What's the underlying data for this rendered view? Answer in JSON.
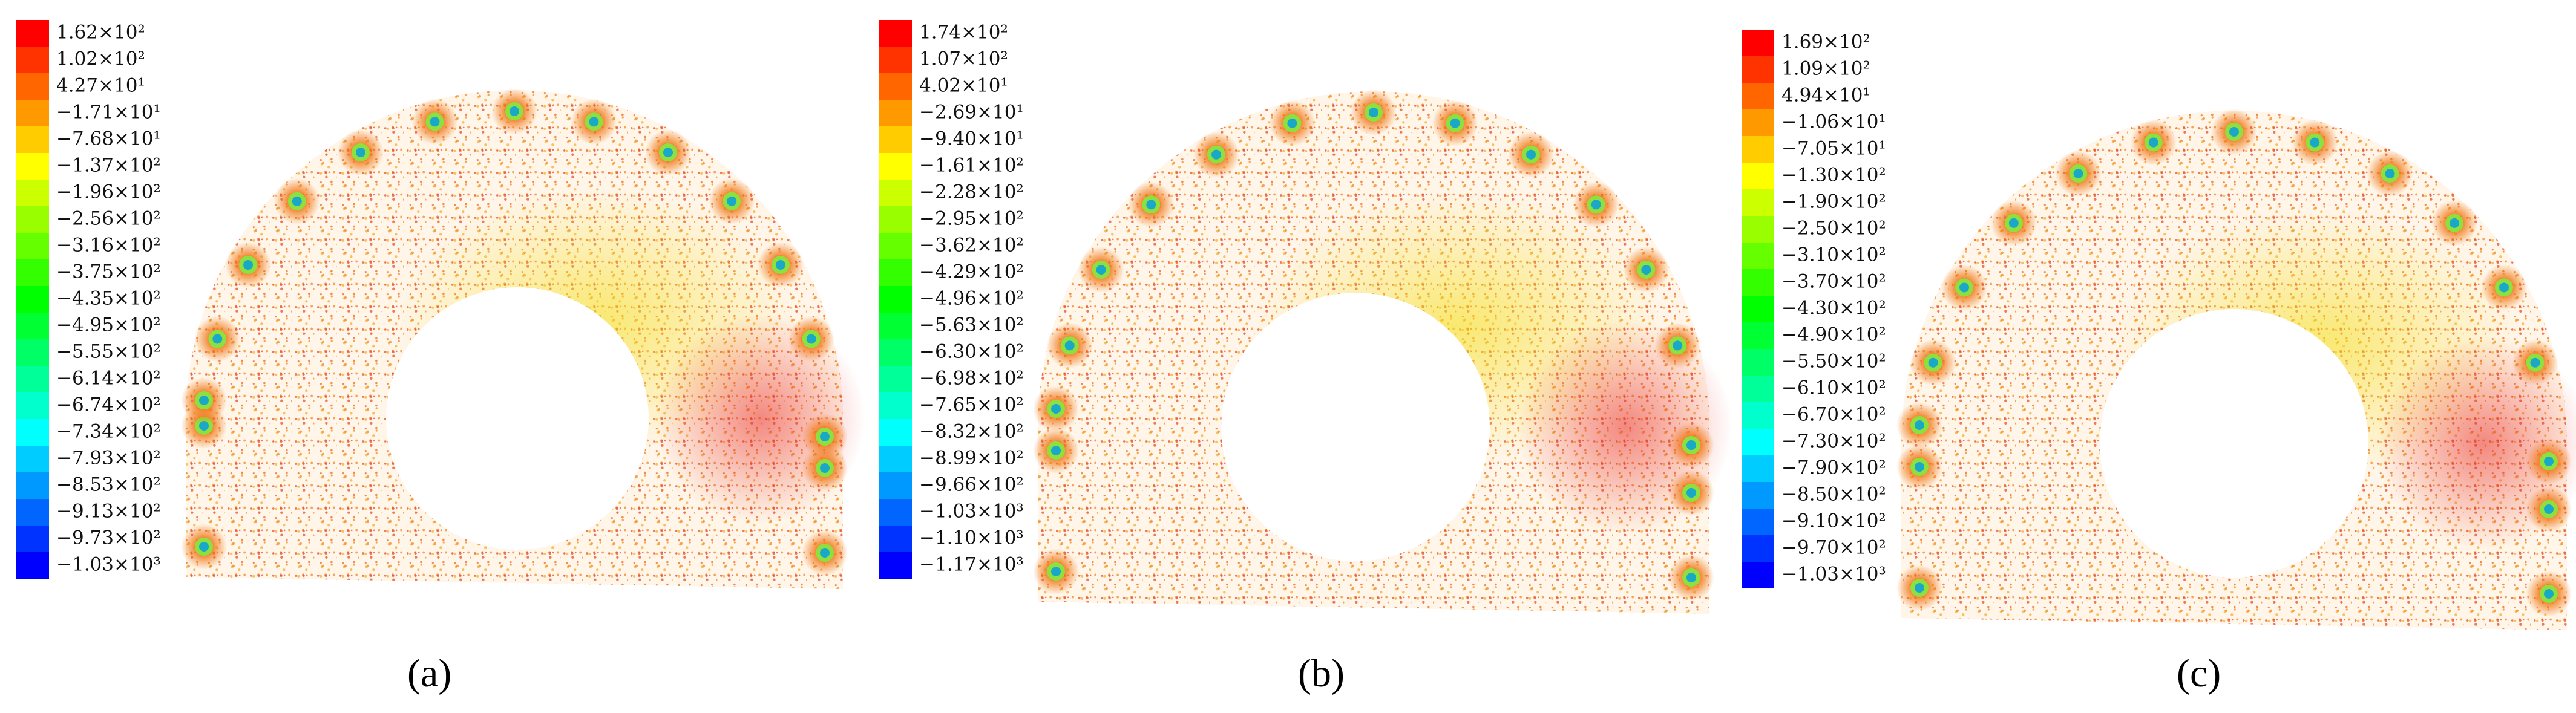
{
  "panels": [
    {
      "legend_labels": [
        "1.62×10²",
        "1.02×10²",
        "4.27×10¹",
        "−1.71×10¹",
        "−7.68×10¹",
        "−1.37×10²",
        "−1.96×10²",
        "−2.56×10²",
        "−3.16×10²",
        "−3.75×10²",
        "−4.35×10²",
        "−4.95×10²",
        "−5.55×10²",
        "−6.14×10²",
        "−6.74×10²",
        "−7.34×10²",
        "−7.93×10²",
        "−8.53×10²",
        "−9.13×10²",
        "−9.73×10²",
        "−1.03×10³"
      ],
      "caption": "(a)"
    },
    {
      "legend_labels": [
        "1.74×10²",
        "1.07×10²",
        "4.02×10¹",
        "−2.69×10¹",
        "−9.40×10¹",
        "−1.61×10²",
        "−2.28×10²",
        "−2.95×10²",
        "−3.62×10²",
        "−4.29×10²",
        "−4.96×10²",
        "−5.63×10²",
        "−6.30×10²",
        "−6.98×10²",
        "−7.65×10²",
        "−8.32×10²",
        "−8.99×10²",
        "−9.66×10²",
        "−1.03×10³",
        "−1.10×10³",
        "−1.17×10³"
      ],
      "caption": "(b)"
    },
    {
      "legend_labels": [
        "1.69×10²",
        "1.09×10²",
        "4.94×10¹",
        "−1.06×10¹",
        "−7.05×10¹",
        "−1.30×10²",
        "−1.90×10²",
        "−2.50×10²",
        "−3.10×10²",
        "−3.70×10²",
        "−4.30×10²",
        "−4.90×10²",
        "−5.50×10²",
        "−6.10×10²",
        "−6.70×10²",
        "−7.30×10²",
        "−7.90×10²",
        "−8.50×10²",
        "−9.10×10²",
        "−9.70×10²",
        "−1.03×10³"
      ],
      "caption": "(c)"
    }
  ]
}
